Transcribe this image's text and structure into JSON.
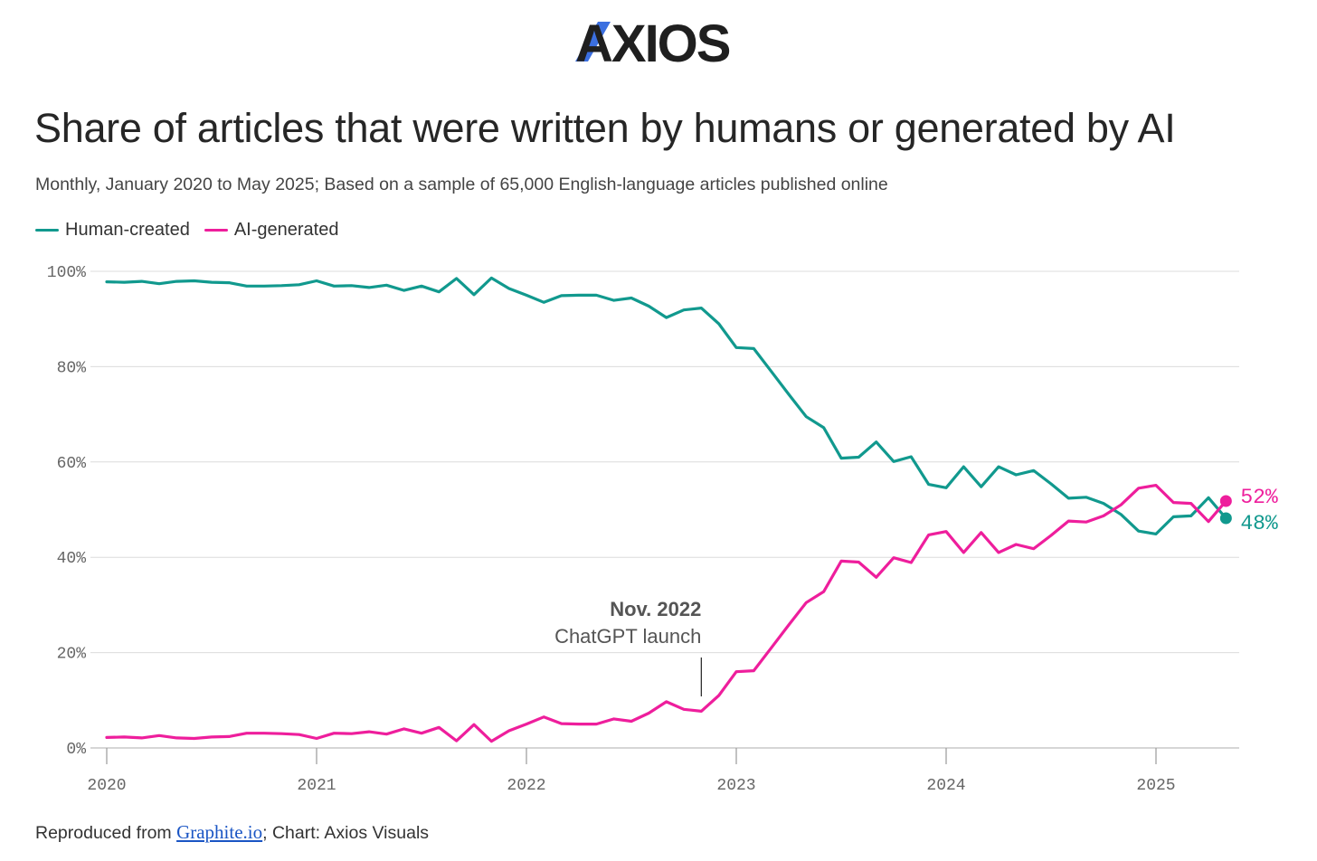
{
  "brand": {
    "logo_text": "AXIOS",
    "accent_color": "#3b6fe0",
    "text_color": "#1f1f1f"
  },
  "header": {
    "title": "Share of articles that were written by humans or generated by AI",
    "subtitle": "Monthly, January 2020 to May 2025; Based on a sample of 65,000 English-language articles published online"
  },
  "legend": [
    {
      "label": "Human-created",
      "color": "#11998e"
    },
    {
      "label": "AI-generated",
      "color": "#ee1e9c"
    }
  ],
  "footer": {
    "prefix": "Reproduced from ",
    "link_text": "Graphite.io",
    "suffix": "; Chart: Axios Visuals"
  },
  "chart_data": {
    "type": "line",
    "title": "Share of articles that were written by humans or generated by AI",
    "xlabel": "",
    "ylabel": "",
    "x_start": "2020-01",
    "x_end": "2025-05",
    "xlim": [
      2020.0,
      2025.4167
    ],
    "ylim": [
      0,
      100
    ],
    "y_ticks": [
      0,
      20,
      40,
      60,
      80,
      100
    ],
    "y_tick_labels": [
      "0%",
      "20%",
      "40%",
      "60%",
      "80%",
      "100%"
    ],
    "x_ticks": [
      2020,
      2021,
      2022,
      2023,
      2024,
      2025
    ],
    "x_tick_labels": [
      "2020",
      "2021",
      "2022",
      "2023",
      "2024",
      "2025"
    ],
    "grid": true,
    "annotation": {
      "x": 2022.8333,
      "bold": "Nov. 2022",
      "text": "ChatGPT launch"
    },
    "end_labels": {
      "ai": "52%",
      "human": "48%"
    },
    "series": [
      {
        "name": "Human-created",
        "color": "#11998e",
        "values": [
          97.8,
          97.7,
          97.9,
          97.4,
          97.9,
          98.0,
          97.7,
          97.6,
          96.9,
          96.9,
          97.0,
          97.2,
          98.0,
          96.9,
          97.0,
          96.6,
          97.1,
          96.0,
          96.9,
          95.7,
          98.5,
          95.1,
          98.6,
          96.4,
          95.0,
          93.5,
          94.9,
          95.0,
          95.0,
          93.9,
          94.4,
          92.7,
          90.3,
          91.9,
          92.3,
          89.0,
          84.0,
          83.8,
          79.0,
          74.2,
          69.5,
          67.2,
          60.8,
          61.0,
          64.2,
          60.1,
          61.1,
          55.3,
          54.6,
          59.0,
          54.8,
          59.0,
          57.3,
          58.2,
          55.4,
          52.4,
          52.6,
          51.3,
          49.0,
          45.5,
          44.9,
          48.5,
          48.7,
          52.5,
          48.2
        ]
      },
      {
        "name": "AI-generated",
        "color": "#ee1e9c",
        "values": [
          2.2,
          2.3,
          2.1,
          2.6,
          2.1,
          2.0,
          2.3,
          2.4,
          3.1,
          3.1,
          3.0,
          2.8,
          2.0,
          3.1,
          3.0,
          3.4,
          2.9,
          4.0,
          3.1,
          4.3,
          1.5,
          4.9,
          1.4,
          3.6,
          5.0,
          6.5,
          5.1,
          5.0,
          5.0,
          6.1,
          5.6,
          7.3,
          9.7,
          8.1,
          7.7,
          11.0,
          16.0,
          16.2,
          21.0,
          25.8,
          30.5,
          32.8,
          39.2,
          39.0,
          35.8,
          39.9,
          38.9,
          44.7,
          45.4,
          41.0,
          45.2,
          41.0,
          42.7,
          41.8,
          44.6,
          47.6,
          47.4,
          48.7,
          51.0,
          54.5,
          55.1,
          51.5,
          51.3,
          47.5,
          51.8
        ]
      }
    ]
  }
}
